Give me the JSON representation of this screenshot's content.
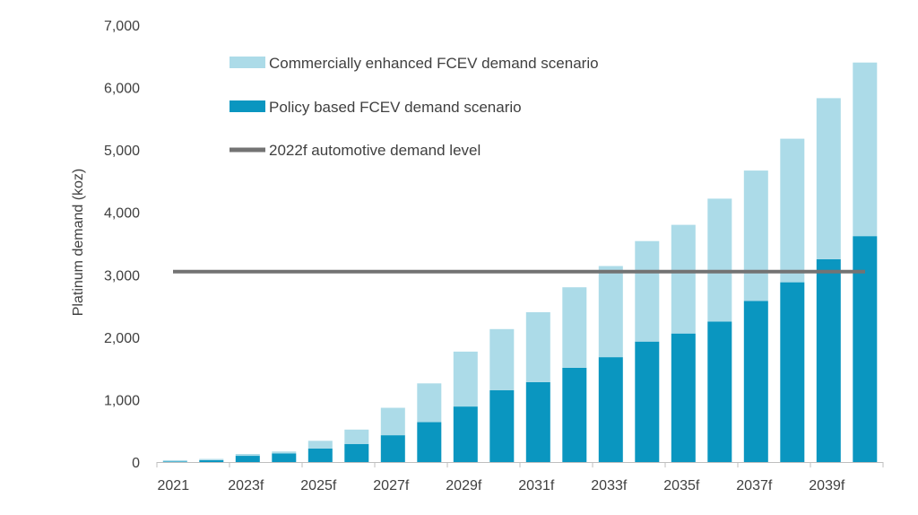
{
  "chart_data": {
    "type": "bar",
    "stacked": true,
    "categories": [
      "2021",
      "2022f",
      "2023f",
      "2024f",
      "2025f",
      "2026f",
      "2027f",
      "2028f",
      "2029f",
      "2030f",
      "2031f",
      "2032f",
      "2033f",
      "2034f",
      "2035f",
      "2036f",
      "2037f",
      "2038f",
      "2039f",
      "2040f"
    ],
    "tick_labels": [
      "2021",
      "2023f",
      "2025f",
      "2027f",
      "2029f",
      "2031f",
      "2033f",
      "2035f",
      "2037f",
      "2039f"
    ],
    "series": [
      {
        "name": "Policy based FCEV demand scenario",
        "color": "#0a96c0",
        "values": [
          10,
          30,
          100,
          140,
          215,
          290,
          430,
          640,
          890,
          1150,
          1280,
          1510,
          1680,
          1930,
          2060,
          2250,
          2580,
          2880,
          3250,
          3620
        ]
      },
      {
        "name": "Commercially enhanced FCEV demand scenario",
        "color": "#acdbe8",
        "values": [
          20,
          20,
          30,
          30,
          125,
          230,
          440,
          620,
          880,
          980,
          1120,
          1290,
          1460,
          1610,
          1740,
          1970,
          2090,
          2300,
          2580,
          2780
        ]
      }
    ],
    "reference_line": {
      "name": "2022f automotive demand level",
      "value": 3050,
      "color": "#737373"
    },
    "ylabel": "Platinum demand (koz)",
    "xlabel": "",
    "ylim": [
      0,
      7000
    ],
    "yticks": [
      0,
      1000,
      2000,
      3000,
      4000,
      5000,
      6000,
      7000
    ],
    "ytick_labels": [
      "0",
      "1,000",
      "2,000",
      "3,000",
      "4,000",
      "5,000",
      "6,000",
      "7,000"
    ],
    "grid": false,
    "legend_position": "top-left"
  }
}
